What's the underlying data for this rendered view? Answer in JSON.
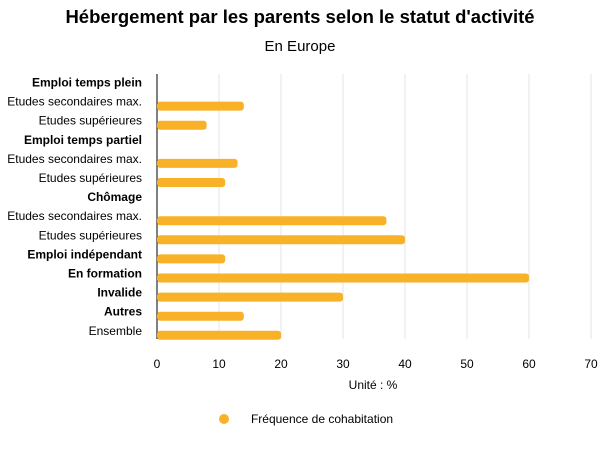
{
  "chart_data": {
    "type": "bar",
    "orientation": "horizontal",
    "title": "Hébergement par les parents selon le statut d'activité",
    "subtitle": "En Europe",
    "xlabel": "Unité : %",
    "ylabel": "",
    "xlim": [
      0,
      70
    ],
    "xticks": [
      "0",
      "10",
      "20",
      "30",
      "40",
      "50",
      "60",
      "70"
    ],
    "grid": true,
    "legend_position": "bottom",
    "color": "#F9B128",
    "categories": [
      {
        "label": "Emploi temps plein",
        "bold": true,
        "value": null
      },
      {
        "label": "Etudes secondaires max.",
        "bold": false,
        "value": 14
      },
      {
        "label": "Etudes supérieures",
        "bold": false,
        "value": 8
      },
      {
        "label": "Emploi temps partiel",
        "bold": true,
        "value": null
      },
      {
        "label": "Etudes secondaires max.",
        "bold": false,
        "value": 13
      },
      {
        "label": "Etudes supérieures",
        "bold": false,
        "value": 11
      },
      {
        "label": "Chômage",
        "bold": true,
        "value": null
      },
      {
        "label": "Etudes secondaires max.",
        "bold": false,
        "value": 37
      },
      {
        "label": "Etudes supérieures",
        "bold": false,
        "value": 40
      },
      {
        "label": "Emploi indépendant",
        "bold": true,
        "value": 11
      },
      {
        "label": "En formation",
        "bold": true,
        "value": 60
      },
      {
        "label": "Invalide",
        "bold": true,
        "value": 30
      },
      {
        "label": "Autres",
        "bold": true,
        "value": 14
      },
      {
        "label": "Ensemble",
        "bold": false,
        "value": 20
      }
    ],
    "series": [
      {
        "name": "Fréquence de cohabitation"
      }
    ]
  }
}
